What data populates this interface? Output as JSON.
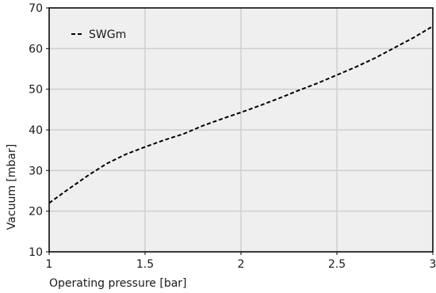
{
  "chart_data": {
    "type": "line",
    "title": "",
    "xlabel": "Operating pressure [bar]",
    "ylabel": "Vacuum [mbar]",
    "xlim": [
      1,
      3
    ],
    "ylim": [
      10,
      70
    ],
    "xticks": [
      {
        "value": 1,
        "label": "1"
      },
      {
        "value": 1.5,
        "label": "1.5"
      },
      {
        "value": 2,
        "label": "2"
      },
      {
        "value": 2.5,
        "label": "2.5"
      },
      {
        "value": 3,
        "label": "3"
      }
    ],
    "yticks": [
      {
        "value": 10,
        "label": "10"
      },
      {
        "value": 20,
        "label": "20"
      },
      {
        "value": 30,
        "label": "30"
      },
      {
        "value": 40,
        "label": "40"
      },
      {
        "value": 50,
        "label": "50"
      },
      {
        "value": 60,
        "label": "60"
      },
      {
        "value": 70,
        "label": "70"
      }
    ],
    "grid": true,
    "legend_position": "top-left",
    "background_color": "#efefef",
    "grid_color": "#cfcfcf",
    "series": [
      {
        "name": "SWGm",
        "color": "#000000",
        "line_style": "dashed",
        "x": [
          1.0,
          1.1,
          1.2,
          1.3,
          1.4,
          1.5,
          1.6,
          1.7,
          1.8,
          1.9,
          2.0,
          2.1,
          2.2,
          2.3,
          2.4,
          2.5,
          2.6,
          2.7,
          2.8,
          2.9,
          3.0
        ],
        "y": [
          22.0,
          25.4,
          28.7,
          31.7,
          34.0,
          35.8,
          37.5,
          39.0,
          41.0,
          42.7,
          44.3,
          46.0,
          47.8,
          49.7,
          51.5,
          53.5,
          55.5,
          57.7,
          60.2,
          62.7,
          65.5
        ]
      }
    ]
  }
}
